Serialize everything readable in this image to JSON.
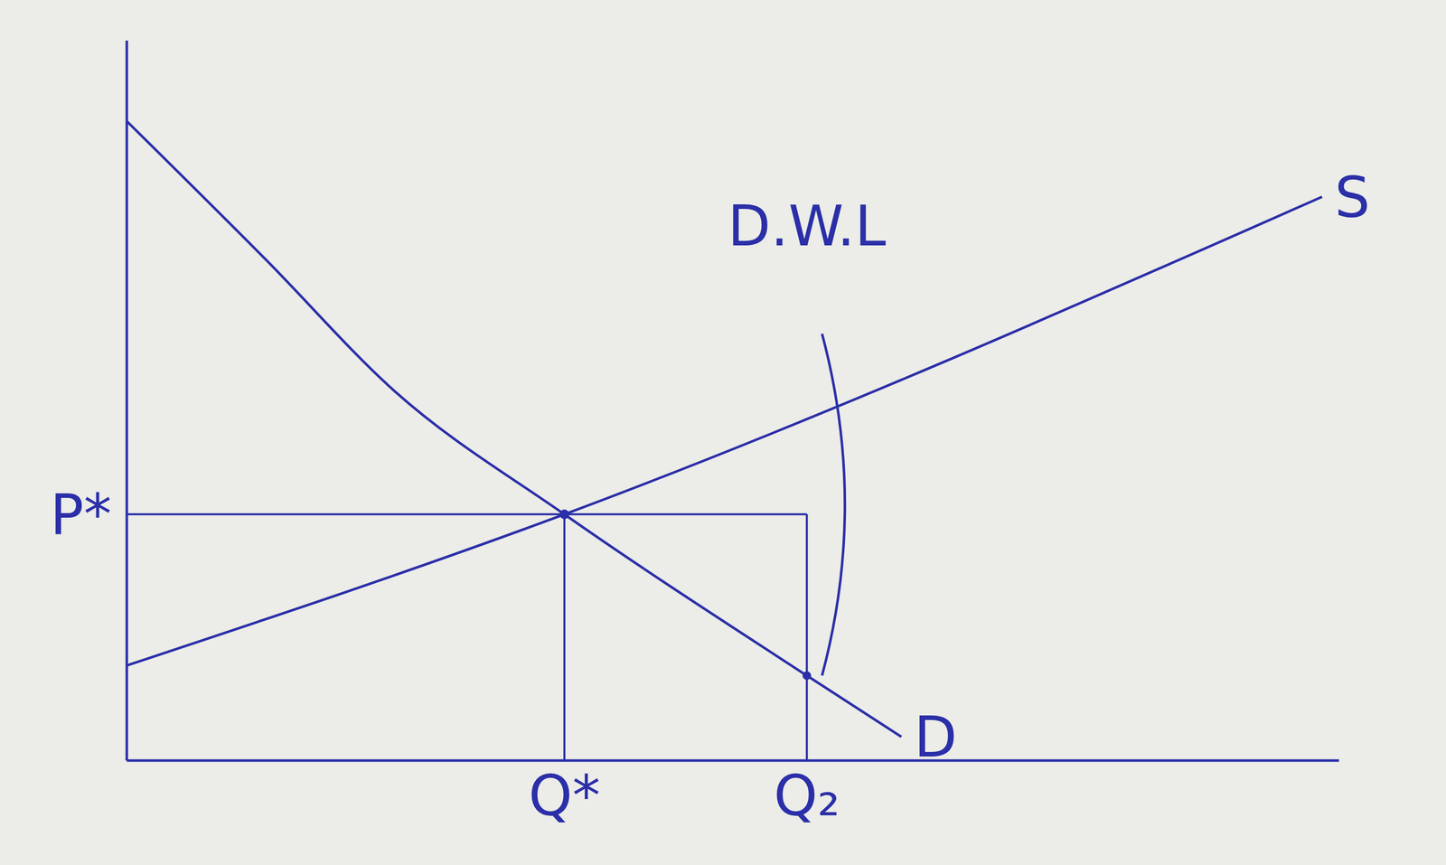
{
  "chart_data": {
    "type": "line",
    "xlim": [
      0,
      10
    ],
    "ylim": [
      0,
      10
    ],
    "xticks": [],
    "yticks": [],
    "tick_labels": false,
    "grid": false,
    "series": [
      {
        "name": "S",
        "color": "#2b2fa8",
        "x": [
          0,
          3.61,
          9.86
        ],
        "values": [
          1.32,
          3.42,
          7.83
        ]
      },
      {
        "name": "D",
        "color": "#2b2fa8",
        "x": [
          0,
          1.14,
          2.21,
          3.61,
          5.61,
          6.39
        ],
        "values": [
          8.88,
          6.97,
          5.13,
          3.42,
          1.18,
          0.33
        ]
      }
    ],
    "annotations": {
      "equilibrium": {
        "x": 3.61,
        "y": 3.42,
        "x_label": "Q*",
        "y_label": "P*"
      },
      "q2": {
        "x": 5.61,
        "label": "Q₂"
      },
      "dwl": {
        "label": "D.W.L"
      }
    }
  }
}
